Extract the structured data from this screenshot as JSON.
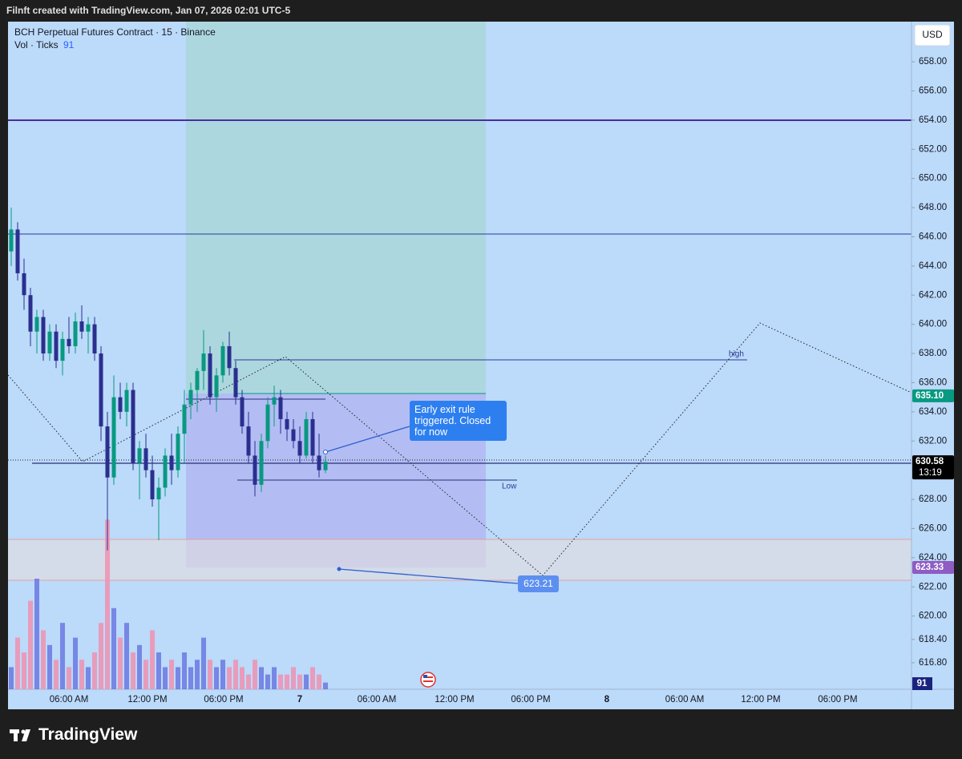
{
  "header": {
    "title": "Filnft created with TradingView.com, Jan 07, 2026 02:01 UTC-5"
  },
  "chart_data": {
    "type": "candlestick",
    "title": "BCH Perpetual Futures Contract · 15 · Binance",
    "volume_legend": "Vol · Ticks",
    "currency": "USD",
    "up_color": "#089981",
    "down_color": "#2a2f8f",
    "volume_up_color": "#6a78e0",
    "volume_down_color": "#f090b0",
    "candles": {
      "open": [
        645,
        646.5,
        643.5,
        642,
        639.5,
        640.5,
        638,
        639.5,
        637.5,
        639,
        638.5,
        640.2,
        639.5,
        640,
        638,
        633,
        629.5,
        635,
        634,
        635.5,
        630.5,
        631.5,
        630,
        628,
        628.8,
        631,
        630,
        632.5,
        634.5,
        635.5,
        636.8,
        638,
        635,
        636.5,
        638.5,
        637,
        635,
        633,
        631,
        629,
        632,
        634.5,
        635,
        633.5,
        632.8,
        632,
        631,
        633.5,
        631,
        630
      ],
      "high": [
        648,
        647,
        644.5,
        642.5,
        641,
        641,
        640,
        640,
        639.5,
        640.5,
        640.8,
        641.3,
        640.5,
        640.5,
        638.5,
        634,
        636.5,
        636,
        636,
        636,
        632,
        632.5,
        631,
        629.5,
        631.5,
        632.5,
        633,
        635.5,
        636,
        637,
        639.6,
        638.5,
        637,
        638.8,
        639.5,
        637.5,
        635.5,
        634,
        632,
        632.5,
        635,
        635.8,
        635.5,
        634,
        633.5,
        633,
        634,
        634,
        632.5,
        631
      ],
      "low": [
        644,
        643,
        641,
        638.5,
        638,
        637.5,
        637.5,
        637,
        636.5,
        638,
        638,
        639,
        638,
        637.5,
        632,
        624.5,
        629,
        633.5,
        633,
        630,
        628,
        629.5,
        627.5,
        625.2,
        628.2,
        629,
        629.5,
        630.5,
        633.5,
        634,
        635.5,
        634.5,
        634,
        636,
        636.5,
        634.5,
        632.5,
        630.5,
        628.2,
        628.5,
        631.5,
        633,
        632.5,
        632,
        631.5,
        630.5,
        630.8,
        630.5,
        629.5,
        629.8
      ],
      "close": [
        646.5,
        643.5,
        642,
        639.5,
        640.5,
        638,
        639.5,
        637.5,
        639,
        638.5,
        640.2,
        639.5,
        640,
        638,
        633,
        629.5,
        635,
        634,
        635.5,
        630.5,
        631.5,
        630,
        628,
        628.8,
        631,
        630,
        632.5,
        634.5,
        635.5,
        636.8,
        638,
        635,
        636.5,
        638.5,
        637,
        635,
        633,
        631,
        629,
        632,
        634.5,
        635,
        633.5,
        632.8,
        632,
        631,
        633.5,
        631,
        630,
        630.58
      ]
    },
    "volume": {
      "values": [
        300,
        700,
        500,
        1200,
        1500,
        800,
        600,
        400,
        900,
        300,
        700,
        400,
        300,
        500,
        900,
        2300,
        1100,
        700,
        900,
        500,
        600,
        400,
        800,
        500,
        300,
        400,
        300,
        500,
        300,
        400,
        700,
        400,
        300,
        400,
        300,
        400,
        300,
        200,
        400,
        300,
        200,
        300,
        200,
        200,
        300,
        200,
        200,
        300,
        200,
        91
      ],
      "ylim": [
        0,
        2500
      ]
    },
    "ylim": [
      614.98,
      660.75
    ],
    "yticks": [
      {
        "value": 616.8,
        "label": "616.80"
      },
      {
        "value": 618.4,
        "label": "618.40"
      },
      {
        "value": 620,
        "label": "620.00"
      },
      {
        "value": 622,
        "label": "622.00"
      },
      {
        "value": 624,
        "label": "624.00"
      },
      {
        "value": 626,
        "label": "626.00"
      },
      {
        "value": 628,
        "label": "628.00"
      },
      {
        "value": 632,
        "label": "632.00"
      },
      {
        "value": 634,
        "label": "634.00"
      },
      {
        "value": 636,
        "label": "636.00"
      },
      {
        "value": 638,
        "label": "638.00"
      },
      {
        "value": 640,
        "label": "640.00"
      },
      {
        "value": 642,
        "label": "642.00"
      },
      {
        "value": 644,
        "label": "644.00"
      },
      {
        "value": 646,
        "label": "646.00"
      },
      {
        "value": 648,
        "label": "648.00"
      },
      {
        "value": 650,
        "label": "650.00"
      },
      {
        "value": 652,
        "label": "652.00"
      },
      {
        "value": 654,
        "label": "654.00"
      },
      {
        "value": 656,
        "label": "656.00"
      },
      {
        "value": 658,
        "label": "658.00"
      }
    ],
    "price_tags": [
      {
        "value": 635.1,
        "label": "635.10",
        "color": "#089981"
      },
      {
        "value": 630.58,
        "label": "630.58",
        "color": "#000000",
        "countdown": "13:19"
      },
      {
        "value": 623.33,
        "label": "623.33",
        "color": "#8e5cc4"
      }
    ],
    "time_labels": [
      "06:00 AM",
      "12:00 PM",
      "06:00 PM",
      "7",
      "06:00 AM",
      "12:00 PM",
      "06:00 PM",
      "8",
      "06:00 AM",
      "12:00 PM",
      "06:00 PM"
    ],
    "annotations": {
      "note": "Early exit rule triggered. Closed for now",
      "high": "high",
      "low": "Low",
      "target": 623.21
    }
  },
  "footer": {
    "brand": "TradingView"
  }
}
